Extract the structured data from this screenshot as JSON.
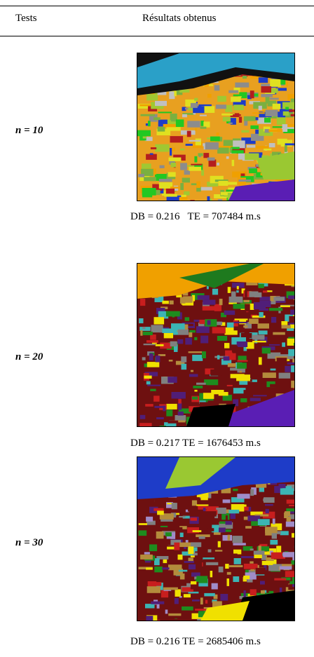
{
  "table": {
    "header": [
      "Tests",
      "Résultats obtenus"
    ],
    "rows": [
      {
        "label": "n = 10",
        "caption": "DB = 0.216   TE = 707484 m.s"
      },
      {
        "label": "n = 20",
        "caption": "DB = 0.217 TE = 1676453 m.s"
      },
      {
        "label": "n = 30",
        "caption": "DB = 0.216 TE = 2685406 m.s"
      }
    ]
  }
}
